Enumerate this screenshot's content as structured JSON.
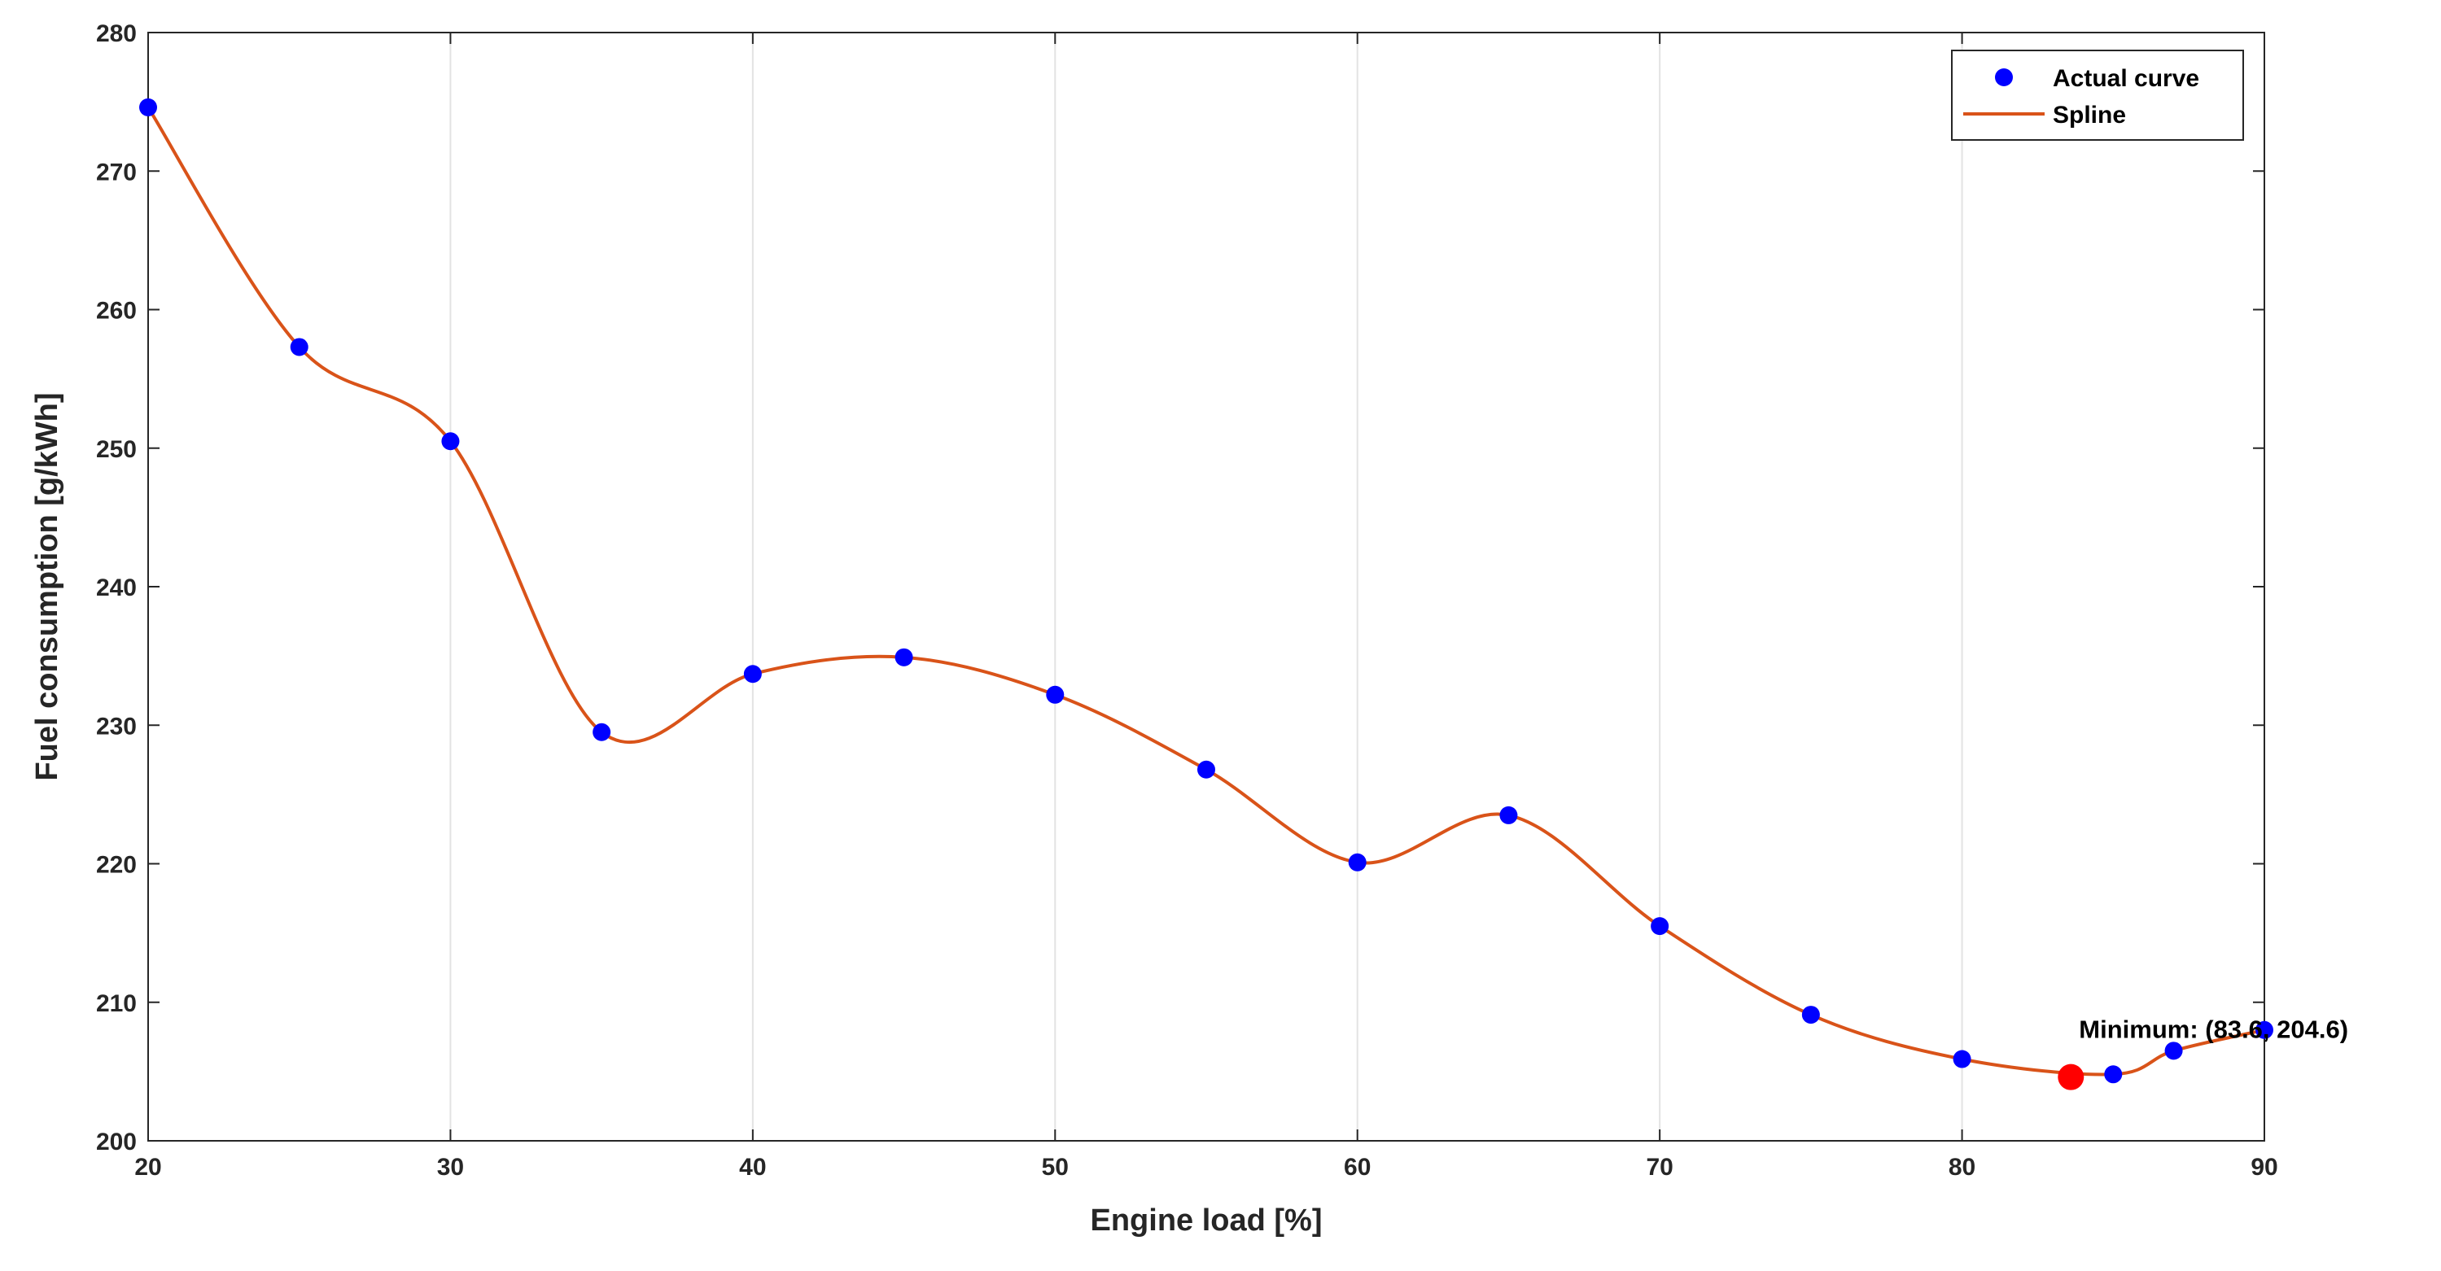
{
  "chart_data": {
    "type": "line",
    "xlabel": "Engine load [%]",
    "ylabel": "Fuel consumption [g/kWh]",
    "xlim": [
      20,
      90
    ],
    "ylim": [
      200,
      280
    ],
    "xticks": [
      20,
      30,
      40,
      50,
      60,
      70,
      80,
      90
    ],
    "yticks": [
      200,
      210,
      220,
      230,
      240,
      250,
      260,
      270,
      280
    ],
    "grid": true,
    "legend_position": "top-right",
    "series": [
      {
        "name": "Actual curve",
        "kind": "markers",
        "color": "#0000ff",
        "x": [
          20,
          25,
          30,
          35,
          40,
          45,
          50,
          55,
          60,
          65,
          70,
          75,
          80,
          85,
          87,
          90
        ],
        "y": [
          274.6,
          257.3,
          250.5,
          229.5,
          233.7,
          234.9,
          232.2,
          226.8,
          220.1,
          223.5,
          215.5,
          209.1,
          205.9,
          204.8,
          206.5,
          208.0
        ]
      },
      {
        "name": "Spline",
        "kind": "line",
        "color": "#d95319"
      }
    ],
    "minimum": {
      "x": 83.6,
      "y": 204.6,
      "color": "#ff0000",
      "label": "Minimum: (83.6, 204.6)"
    }
  }
}
